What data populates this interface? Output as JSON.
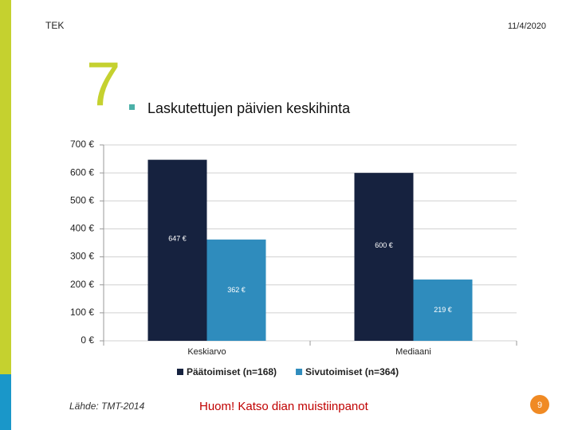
{
  "header": {
    "org": "TEK",
    "date": "11/4/2020"
  },
  "slide": {
    "number": "7",
    "title": "Laskutettujen päivien keskihinta"
  },
  "chart_data": {
    "type": "bar",
    "categories": [
      "Keskiarvo",
      "Mediaani"
    ],
    "series": [
      {
        "name": "Päätoimiset (n=168)",
        "color": "#16223f",
        "values": [
          647,
          600
        ],
        "value_labels": [
          "647 €",
          "600 €"
        ]
      },
      {
        "name": "Sivutoimiset (n=364)",
        "color": "#2f8cbd",
        "values": [
          362,
          219
        ],
        "value_labels": [
          "362 €",
          "219 €"
        ]
      }
    ],
    "ylim": [
      0,
      700
    ],
    "yticks": [
      {
        "value": 0,
        "label": "0 €"
      },
      {
        "value": 100,
        "label": "100 €"
      },
      {
        "value": 200,
        "label": "200 €"
      },
      {
        "value": 300,
        "label": "300 €"
      },
      {
        "value": 400,
        "label": "400 €"
      },
      {
        "value": 500,
        "label": "500 €"
      },
      {
        "value": 600,
        "label": "600 €"
      },
      {
        "value": 700,
        "label": "700 €"
      }
    ],
    "grid": true,
    "legend": "bottom"
  },
  "footer": {
    "source": "Lähde: TMT-2014",
    "note": "Huom! Katso dian muistiinpanot",
    "page": "9"
  }
}
